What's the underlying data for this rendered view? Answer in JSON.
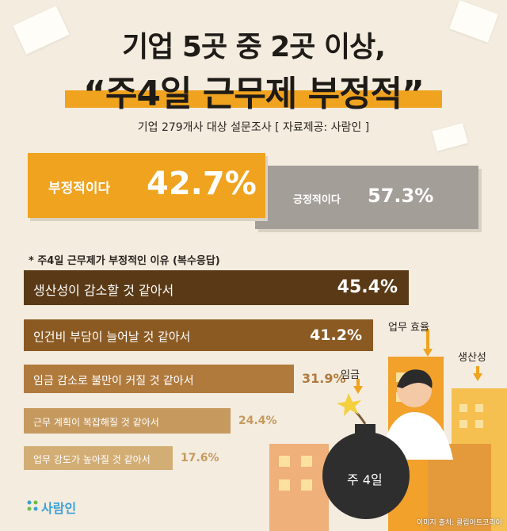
{
  "header": {
    "title_line1": "기업 5곳 중 2곳 이상,",
    "title_line2": "“주4일 근무제 부정적”",
    "subtitle": "기업 279개사 대상 설문조사 [ 자료제공: 사람인 ]"
  },
  "summary": {
    "negative_label": "부정적이다",
    "negative_value": "42.7%",
    "positive_label": "긍정적이다",
    "positive_value": "57.3%"
  },
  "reasons_title": "* 주4일 근무제가 부정적인 이유 (복수응답)",
  "chart_data": {
    "type": "bar",
    "orientation": "horizontal",
    "title": "* 주4일 근무제가 부정적인 이유 (복수응답)",
    "categories": [
      "생산성이 감소할 것 같아서",
      "인건비 부담이 늘어날 것 같아서",
      "임금 감소로 불만이 커질 것 같아서",
      "근무 계획이 복잡해질 것 같아서",
      "업무 강도가 높아질 것 같아서"
    ],
    "values": [
      45.4,
      41.2,
      31.9,
      24.4,
      17.6
    ],
    "value_labels": [
      "45.4%",
      "41.2%",
      "31.9%",
      "24.4%",
      "17.6%"
    ],
    "xlim": [
      0,
      50
    ],
    "colors": [
      "#5a3a16",
      "#8b5a22",
      "#b07a3d",
      "#c69a5f",
      "#d2ad74"
    ],
    "grid": false,
    "legend": "none"
  },
  "illustration": {
    "tags": [
      "업무 효율",
      "임금",
      "생산성"
    ],
    "bomb_label": "주 4일"
  },
  "footer": {
    "logo": "사람인",
    "credit": "이미지 출처: 클립아트코리아"
  }
}
